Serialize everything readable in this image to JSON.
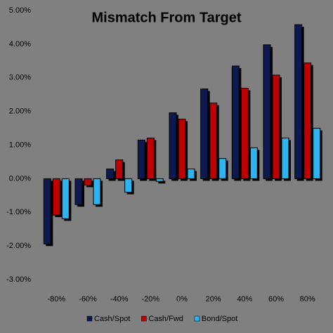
{
  "chart_data": {
    "type": "bar",
    "title": "Mismatch From Target",
    "categories": [
      "-80%",
      "-60%",
      "-40%",
      "-20%",
      "0%",
      "20%",
      "40%",
      "60%",
      "80%"
    ],
    "series": [
      {
        "name": "Cash/Spot",
        "color": "#0d1a4f",
        "values": [
          -1.94,
          -0.77,
          0.29,
          1.15,
          1.96,
          2.67,
          3.35,
          3.98,
          4.58
        ]
      },
      {
        "name": "Cash/Fwd",
        "color": "#c00000",
        "values": [
          -1.08,
          -0.19,
          0.56,
          1.21,
          1.77,
          2.25,
          2.69,
          3.08,
          3.44
        ]
      },
      {
        "name": "Bond/Spot",
        "color": "#2db3ef",
        "values": [
          -1.19,
          -0.77,
          -0.4,
          -0.08,
          0.29,
          0.6,
          0.92,
          1.21,
          1.5
        ]
      }
    ],
    "ylim": [
      -3,
      5
    ],
    "yticks": [
      {
        "value": -3,
        "label": "-3.00%"
      },
      {
        "value": -2,
        "label": "-2.00%"
      },
      {
        "value": -1,
        "label": "-1.00%"
      },
      {
        "value": 0,
        "label": "0.00%"
      },
      {
        "value": 1,
        "label": "1.00%"
      },
      {
        "value": 2,
        "label": "2.00%"
      },
      {
        "value": 3,
        "label": "3.00%"
      },
      {
        "value": 4,
        "label": "4.00%"
      },
      {
        "value": 5,
        "label": "5.00%"
      }
    ],
    "grid": false,
    "legend": "bottom"
  }
}
